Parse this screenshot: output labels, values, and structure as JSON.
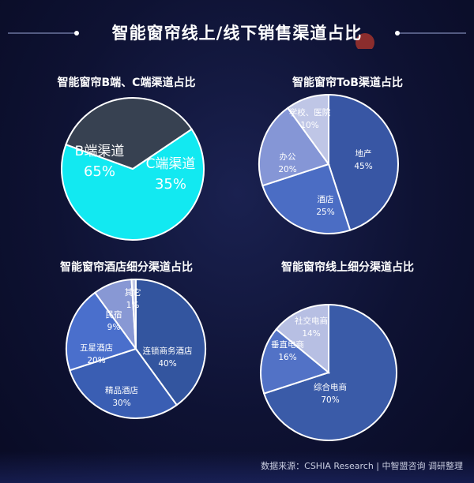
{
  "title": "智能窗帘线上/线下销售渠道占比",
  "footer": "数据来源：CSHIA Research | 中智盟咨询 调研整理",
  "chart_data": [
    {
      "type": "pie",
      "title": "智能窗帘B端、C端渠道占比",
      "unit": "%",
      "slices": [
        {
          "label": "B端渠道",
          "value": 65,
          "display": "65%",
          "color": "#12e9f1",
          "text_color": "#ffffff"
        },
        {
          "label": "C端渠道",
          "value": 35,
          "display": "35%",
          "color": "#374151",
          "text_color": "#ffffff"
        }
      ]
    },
    {
      "type": "pie",
      "title": "智能窗帘ToB渠道占比",
      "unit": "%",
      "slices": [
        {
          "label": "地产",
          "value": 45,
          "display": "45%",
          "color": "#3856a4",
          "text_color": "#ffffff"
        },
        {
          "label": "酒店",
          "value": 25,
          "display": "25%",
          "color": "#4b6dc4",
          "text_color": "#ffffff"
        },
        {
          "label": "办公",
          "value": 20,
          "display": "20%",
          "color": "#8596d6",
          "text_color": "#ffffff"
        },
        {
          "label": "学校、医院",
          "value": 10,
          "display": "10%",
          "color": "#bfc6e6",
          "text_color": "#ffffff"
        }
      ]
    },
    {
      "type": "pie",
      "title": "智能窗帘酒店细分渠道占比",
      "unit": "%",
      "slices": [
        {
          "label": "连锁商务酒店",
          "value": 40,
          "display": "40%",
          "color": "#33559f",
          "text_color": "#ffffff"
        },
        {
          "label": "精品酒店",
          "value": 30,
          "display": "30%",
          "color": "#3a5eb3",
          "text_color": "#ffffff"
        },
        {
          "label": "五星酒店",
          "value": 20,
          "display": "20%",
          "color": "#4a6fcc",
          "text_color": "#ffffff"
        },
        {
          "label": "民宿",
          "value": 9,
          "display": "9%",
          "color": "#8898d4",
          "text_color": "#ffffff"
        },
        {
          "label": "其它",
          "value": 1,
          "display": "1%",
          "color": "#c3c9e6",
          "text_color": "#ffffff"
        }
      ]
    },
    {
      "type": "pie",
      "title": "智能窗帘线上细分渠道占比",
      "unit": "%",
      "slices": [
        {
          "label": "综合电商",
          "value": 70,
          "display": "70%",
          "color": "#3a5ba8",
          "text_color": "#ffffff"
        },
        {
          "label": "垂直电商",
          "value": 16,
          "display": "16%",
          "color": "#5272c6",
          "text_color": "#ffffff"
        },
        {
          "label": "社交电商",
          "value": 14,
          "display": "14%",
          "color": "#b7bfe3",
          "text_color": "#ffffff"
        }
      ]
    }
  ]
}
